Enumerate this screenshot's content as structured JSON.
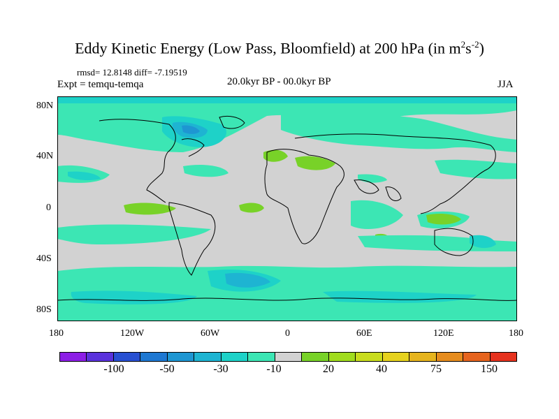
{
  "title": {
    "main": "Eddy Kinetic Energy (Low Pass, Bloomfield) at 200 hPa (in m",
    "sup1": "2",
    "mid": "s",
    "sup2": "-2",
    "close": ")"
  },
  "stats": "rmsd= 12.8148 diff= -7.19519",
  "expt": "Expt = temqu-temqa",
  "period": "20.0kyr BP - 00.0kyr BP",
  "season": "JJA",
  "axes": {
    "y_labels": [
      "80N",
      "40N",
      "0",
      "40S",
      "80S"
    ],
    "x_labels": [
      "180",
      "120W",
      "60W",
      "0",
      "60E",
      "120E",
      "180"
    ]
  },
  "colorbar": {
    "colors": [
      "#8c1ee6",
      "#5a32dc",
      "#2850d2",
      "#1e78d2",
      "#1e96d2",
      "#1eb4d2",
      "#1ed2c8",
      "#3ce6b4",
      "#d2d2d2",
      "#78d228",
      "#a0dc1e",
      "#c8dc1e",
      "#e6d21e",
      "#e6b41e",
      "#e68c1e",
      "#e6641e",
      "#e6321e"
    ],
    "labels": [
      "-100",
      "-50",
      "-30",
      "-10",
      "20",
      "40",
      "75",
      "150"
    ]
  },
  "palette": {
    "neutral": "#d2d2d2",
    "cyan": "#3ce6b4",
    "teal": "#1ed2c8",
    "blue": "#1eb4d2",
    "deepblue": "#1e96d2",
    "green": "#78d228",
    "lime": "#a0dc1e"
  }
}
